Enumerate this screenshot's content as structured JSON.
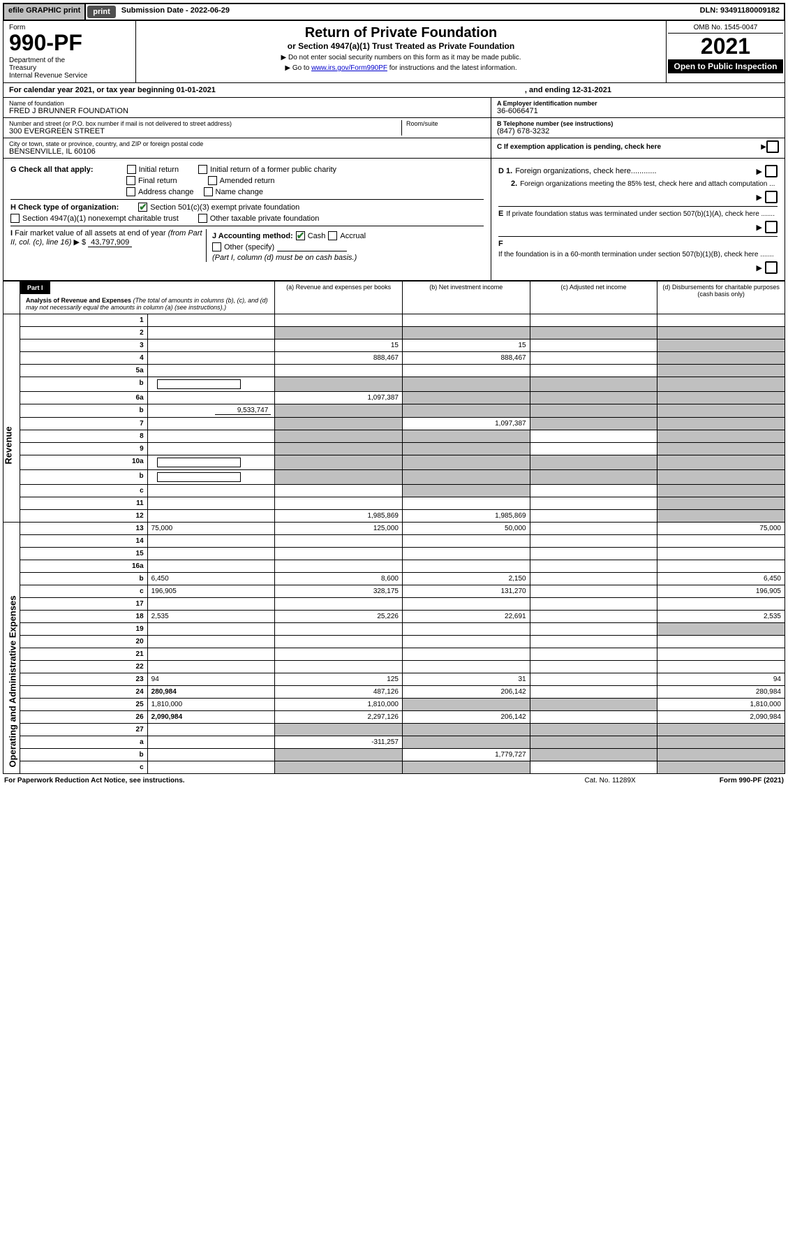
{
  "topbar": {
    "efile": "efile GRAPHIC print",
    "submission_label": "Submission Date - 2022-06-29",
    "dln": "DLN: 93491180009182"
  },
  "header": {
    "form": "Form",
    "number": "990-PF",
    "dept": "Department of the Treasury\nInternal Revenue Service",
    "title": "Return of Private Foundation",
    "subtitle": "or Section 4947(a)(1) Trust Treated as Private Foundation",
    "note1": "▶ Do not enter social security numbers on this form as it may be made public.",
    "note2": "▶ Go to www.irs.gov/Form990PF for instructions and the latest information.",
    "omb": "OMB No. 1545-0047",
    "year": "2021",
    "open": "Open to Public Inspection"
  },
  "calyear": {
    "text": "For calendar year 2021, or tax year beginning 01-01-2021",
    "ending": ", and ending 12-31-2021"
  },
  "info": {
    "name_lbl": "Name of foundation",
    "name": "FRED J BRUNNER FOUNDATION",
    "street_lbl": "Number and street (or P.O. box number if mail is not delivered to street address)",
    "street": "300 EVERGREEN STREET",
    "room_lbl": "Room/suite",
    "city_lbl": "City or town, state or province, country, and ZIP or foreign postal code",
    "city": "BENSENVILLE, IL  60106",
    "ein_lbl": "A Employer identification number",
    "ein": "36-6066471",
    "phone_lbl": "B Telephone number (see instructions)",
    "phone": "(847) 678-3232",
    "c_lbl": "C If exemption application is pending, check here"
  },
  "checks": {
    "g_label": "G Check all that apply:",
    "g_opts": [
      "Initial return",
      "Initial return of a former public charity",
      "Final return",
      "Amended return",
      "Address change",
      "Name change"
    ],
    "h_label": "H Check type of organization:",
    "h_501c3": "Section 501(c)(3) exempt private foundation",
    "h_4947": "Section 4947(a)(1) nonexempt charitable trust",
    "h_other": "Other taxable private foundation",
    "i_label": "I Fair market value of all assets at end of year (from Part II, col. (c), line 16) ▶ $",
    "i_val": "43,797,909",
    "j_label": "J Accounting method:",
    "j_cash": "Cash",
    "j_accrual": "Accrual",
    "j_other": "Other (specify)",
    "j_note": "(Part I, column (d) must be on cash basis.)",
    "d1": "D 1. Foreign organizations, check here............",
    "d2": "2. Foreign organizations meeting the 85% test, check here and attach computation ...",
    "e_label": "E  If private foundation status was terminated under section 507(b)(1)(A), check here .......",
    "f_label": "F  If the foundation is in a 60-month termination under section 507(b)(1)(B), check here .......",
    "arrow": "▶"
  },
  "part1": {
    "label": "Part I",
    "title": "Analysis of Revenue and Expenses",
    "note": "(The total of amounts in columns (b), (c), and (d) may not necessarily equal the amounts in column (a) (see instructions).)",
    "col_a": "(a) Revenue and expenses per books",
    "col_b": "(b) Net investment income",
    "col_c": "(c) Adjusted net income",
    "col_d": "(d) Disbursements for charitable purposes (cash basis only)"
  },
  "side": {
    "revenue": "Revenue",
    "expenses": "Operating and Administrative Expenses"
  },
  "rows": [
    {
      "n": "1",
      "d": "",
      "a": "",
      "b": "",
      "c": "",
      "shade_c": false,
      "shade_d": false
    },
    {
      "n": "2",
      "d": "",
      "a": "",
      "b": "",
      "c": "",
      "shade_a": true,
      "shade_b": true,
      "shade_c": true,
      "shade_d": true,
      "bold_not": true
    },
    {
      "n": "3",
      "d": "",
      "a": "15",
      "b": "15",
      "c": "",
      "shade_d": true
    },
    {
      "n": "4",
      "d": "",
      "a": "888,467",
      "b": "888,467",
      "c": "",
      "shade_d": true
    },
    {
      "n": "5a",
      "d": "",
      "a": "",
      "b": "",
      "c": "",
      "shade_d": true
    },
    {
      "n": "b",
      "d": "",
      "a": "",
      "b": "",
      "c": "",
      "shade_a": true,
      "shade_b": true,
      "shade_c": true,
      "shade_d": true,
      "has_box": true
    },
    {
      "n": "6a",
      "d": "",
      "a": "1,097,387",
      "b": "",
      "c": "",
      "shade_b": true,
      "shade_c": true,
      "shade_d": true
    },
    {
      "n": "b",
      "d": "",
      "a": "",
      "b": "",
      "c": "",
      "shade_a": true,
      "shade_b": true,
      "shade_c": true,
      "shade_d": true,
      "inline_val": "9,533,747"
    },
    {
      "n": "7",
      "d": "",
      "a": "",
      "b": "1,097,387",
      "c": "",
      "shade_a": true,
      "shade_c": true,
      "shade_d": true
    },
    {
      "n": "8",
      "d": "",
      "a": "",
      "b": "",
      "c": "",
      "shade_a": true,
      "shade_b": true,
      "shade_d": true
    },
    {
      "n": "9",
      "d": "",
      "a": "",
      "b": "",
      "c": "",
      "shade_a": true,
      "shade_b": true,
      "shade_d": true
    },
    {
      "n": "10a",
      "d": "",
      "a": "",
      "b": "",
      "c": "",
      "shade_a": true,
      "shade_b": true,
      "shade_c": true,
      "shade_d": true,
      "has_box": true
    },
    {
      "n": "b",
      "d": "",
      "a": "",
      "b": "",
      "c": "",
      "shade_a": true,
      "shade_b": true,
      "shade_c": true,
      "shade_d": true,
      "has_box": true
    },
    {
      "n": "c",
      "d": "",
      "a": "",
      "b": "",
      "c": "",
      "shade_b": true,
      "shade_d": true
    },
    {
      "n": "11",
      "d": "",
      "a": "",
      "b": "",
      "c": "",
      "shade_d": true
    },
    {
      "n": "12",
      "d": "",
      "a": "1,985,869",
      "b": "1,985,869",
      "c": "",
      "shade_d": true,
      "bold": true
    },
    {
      "n": "13",
      "d": "75,000",
      "a": "125,000",
      "b": "50,000",
      "c": ""
    },
    {
      "n": "14",
      "d": "",
      "a": "",
      "b": "",
      "c": ""
    },
    {
      "n": "15",
      "d": "",
      "a": "",
      "b": "",
      "c": ""
    },
    {
      "n": "16a",
      "d": "",
      "a": "",
      "b": "",
      "c": ""
    },
    {
      "n": "b",
      "d": "6,450",
      "a": "8,600",
      "b": "2,150",
      "c": ""
    },
    {
      "n": "c",
      "d": "196,905",
      "a": "328,175",
      "b": "131,270",
      "c": ""
    },
    {
      "n": "17",
      "d": "",
      "a": "",
      "b": "",
      "c": ""
    },
    {
      "n": "18",
      "d": "2,535",
      "a": "25,226",
      "b": "22,691",
      "c": ""
    },
    {
      "n": "19",
      "d": "",
      "a": "",
      "b": "",
      "c": "",
      "shade_d": true
    },
    {
      "n": "20",
      "d": "",
      "a": "",
      "b": "",
      "c": ""
    },
    {
      "n": "21",
      "d": "",
      "a": "",
      "b": "",
      "c": ""
    },
    {
      "n": "22",
      "d": "",
      "a": "",
      "b": "",
      "c": ""
    },
    {
      "n": "23",
      "d": "94",
      "a": "125",
      "b": "31",
      "c": ""
    },
    {
      "n": "24",
      "d": "280,984",
      "a": "487,126",
      "b": "206,142",
      "c": "",
      "bold": true
    },
    {
      "n": "25",
      "d": "1,810,000",
      "a": "1,810,000",
      "b": "",
      "c": "",
      "shade_b": true,
      "shade_c": true
    },
    {
      "n": "26",
      "d": "2,090,984",
      "a": "2,297,126",
      "b": "206,142",
      "c": "",
      "bold": true
    },
    {
      "n": "27",
      "d": "",
      "a": "",
      "b": "",
      "c": "",
      "shade_a": true,
      "shade_b": true,
      "shade_c": true,
      "shade_d": true
    },
    {
      "n": "a",
      "d": "",
      "a": "-311,257",
      "b": "",
      "c": "",
      "shade_b": true,
      "shade_c": true,
      "shade_d": true,
      "bold": true
    },
    {
      "n": "b",
      "d": "",
      "a": "",
      "b": "1,779,727",
      "c": "",
      "shade_a": true,
      "shade_c": true,
      "shade_d": true,
      "bold": true
    },
    {
      "n": "c",
      "d": "",
      "a": "",
      "b": "",
      "c": "",
      "shade_a": true,
      "shade_b": true,
      "shade_d": true,
      "bold": true
    }
  ],
  "footer": {
    "pra": "For Paperwork Reduction Act Notice, see instructions.",
    "cat": "Cat. No. 11289X",
    "form": "Form 990-PF (2021)"
  },
  "colors": {
    "header_black": "#000000",
    "shade": "#c0c0c0",
    "link": "#0000cc",
    "check_green": "#2e7d32"
  }
}
